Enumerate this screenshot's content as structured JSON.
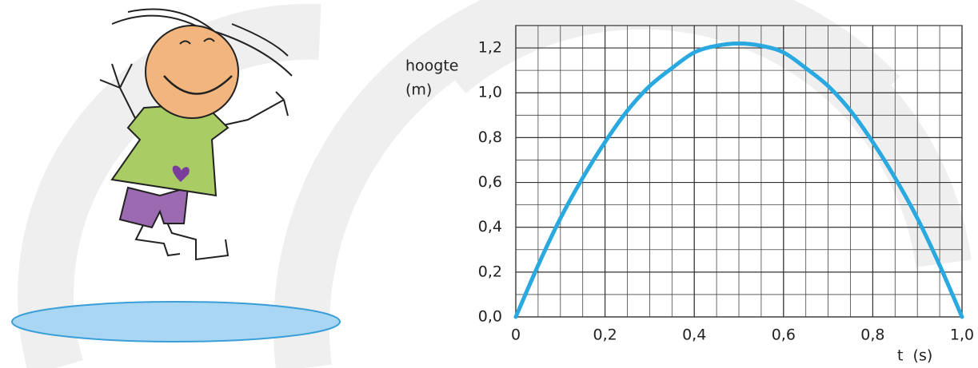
{
  "chart_data": {
    "type": "line",
    "y_label_line1": "hoogte",
    "y_label_line2": "(m)",
    "x_label": "t  (s)",
    "x": [
      0,
      0.05,
      0.1,
      0.15,
      0.2,
      0.25,
      0.3,
      0.35,
      0.4,
      0.45,
      0.5,
      0.55,
      0.6,
      0.65,
      0.7,
      0.75,
      0.8,
      0.85,
      0.9,
      0.95,
      1.0
    ],
    "values": [
      0,
      0.23,
      0.44,
      0.62,
      0.78,
      0.92,
      1.03,
      1.11,
      1.18,
      1.21,
      1.22,
      1.21,
      1.18,
      1.11,
      1.03,
      0.92,
      0.78,
      0.62,
      0.44,
      0.23,
      0
    ],
    "color": "#2aa9e0",
    "xlim": [
      0,
      1.0
    ],
    "ylim": [
      0,
      1.3
    ],
    "xticks": [
      {
        "value": 0,
        "label": "0"
      },
      {
        "value": 0.2,
        "label": "0,2"
      },
      {
        "value": 0.4,
        "label": "0,4"
      },
      {
        "value": 0.6,
        "label": "0,6"
      },
      {
        "value": 0.8,
        "label": "0,8"
      },
      {
        "value": 1.0,
        "label": "1,0"
      }
    ],
    "yticks": [
      {
        "value": 0,
        "label": "0,0"
      },
      {
        "value": 0.2,
        "label": "0,2"
      },
      {
        "value": 0.4,
        "label": "0,4"
      },
      {
        "value": 0.6,
        "label": "0,6"
      },
      {
        "value": 0.8,
        "label": "0,8"
      },
      {
        "value": 1.0,
        "label": "1,0"
      },
      {
        "value": 1.2,
        "label": "1,2"
      }
    ],
    "grid": true
  }
}
